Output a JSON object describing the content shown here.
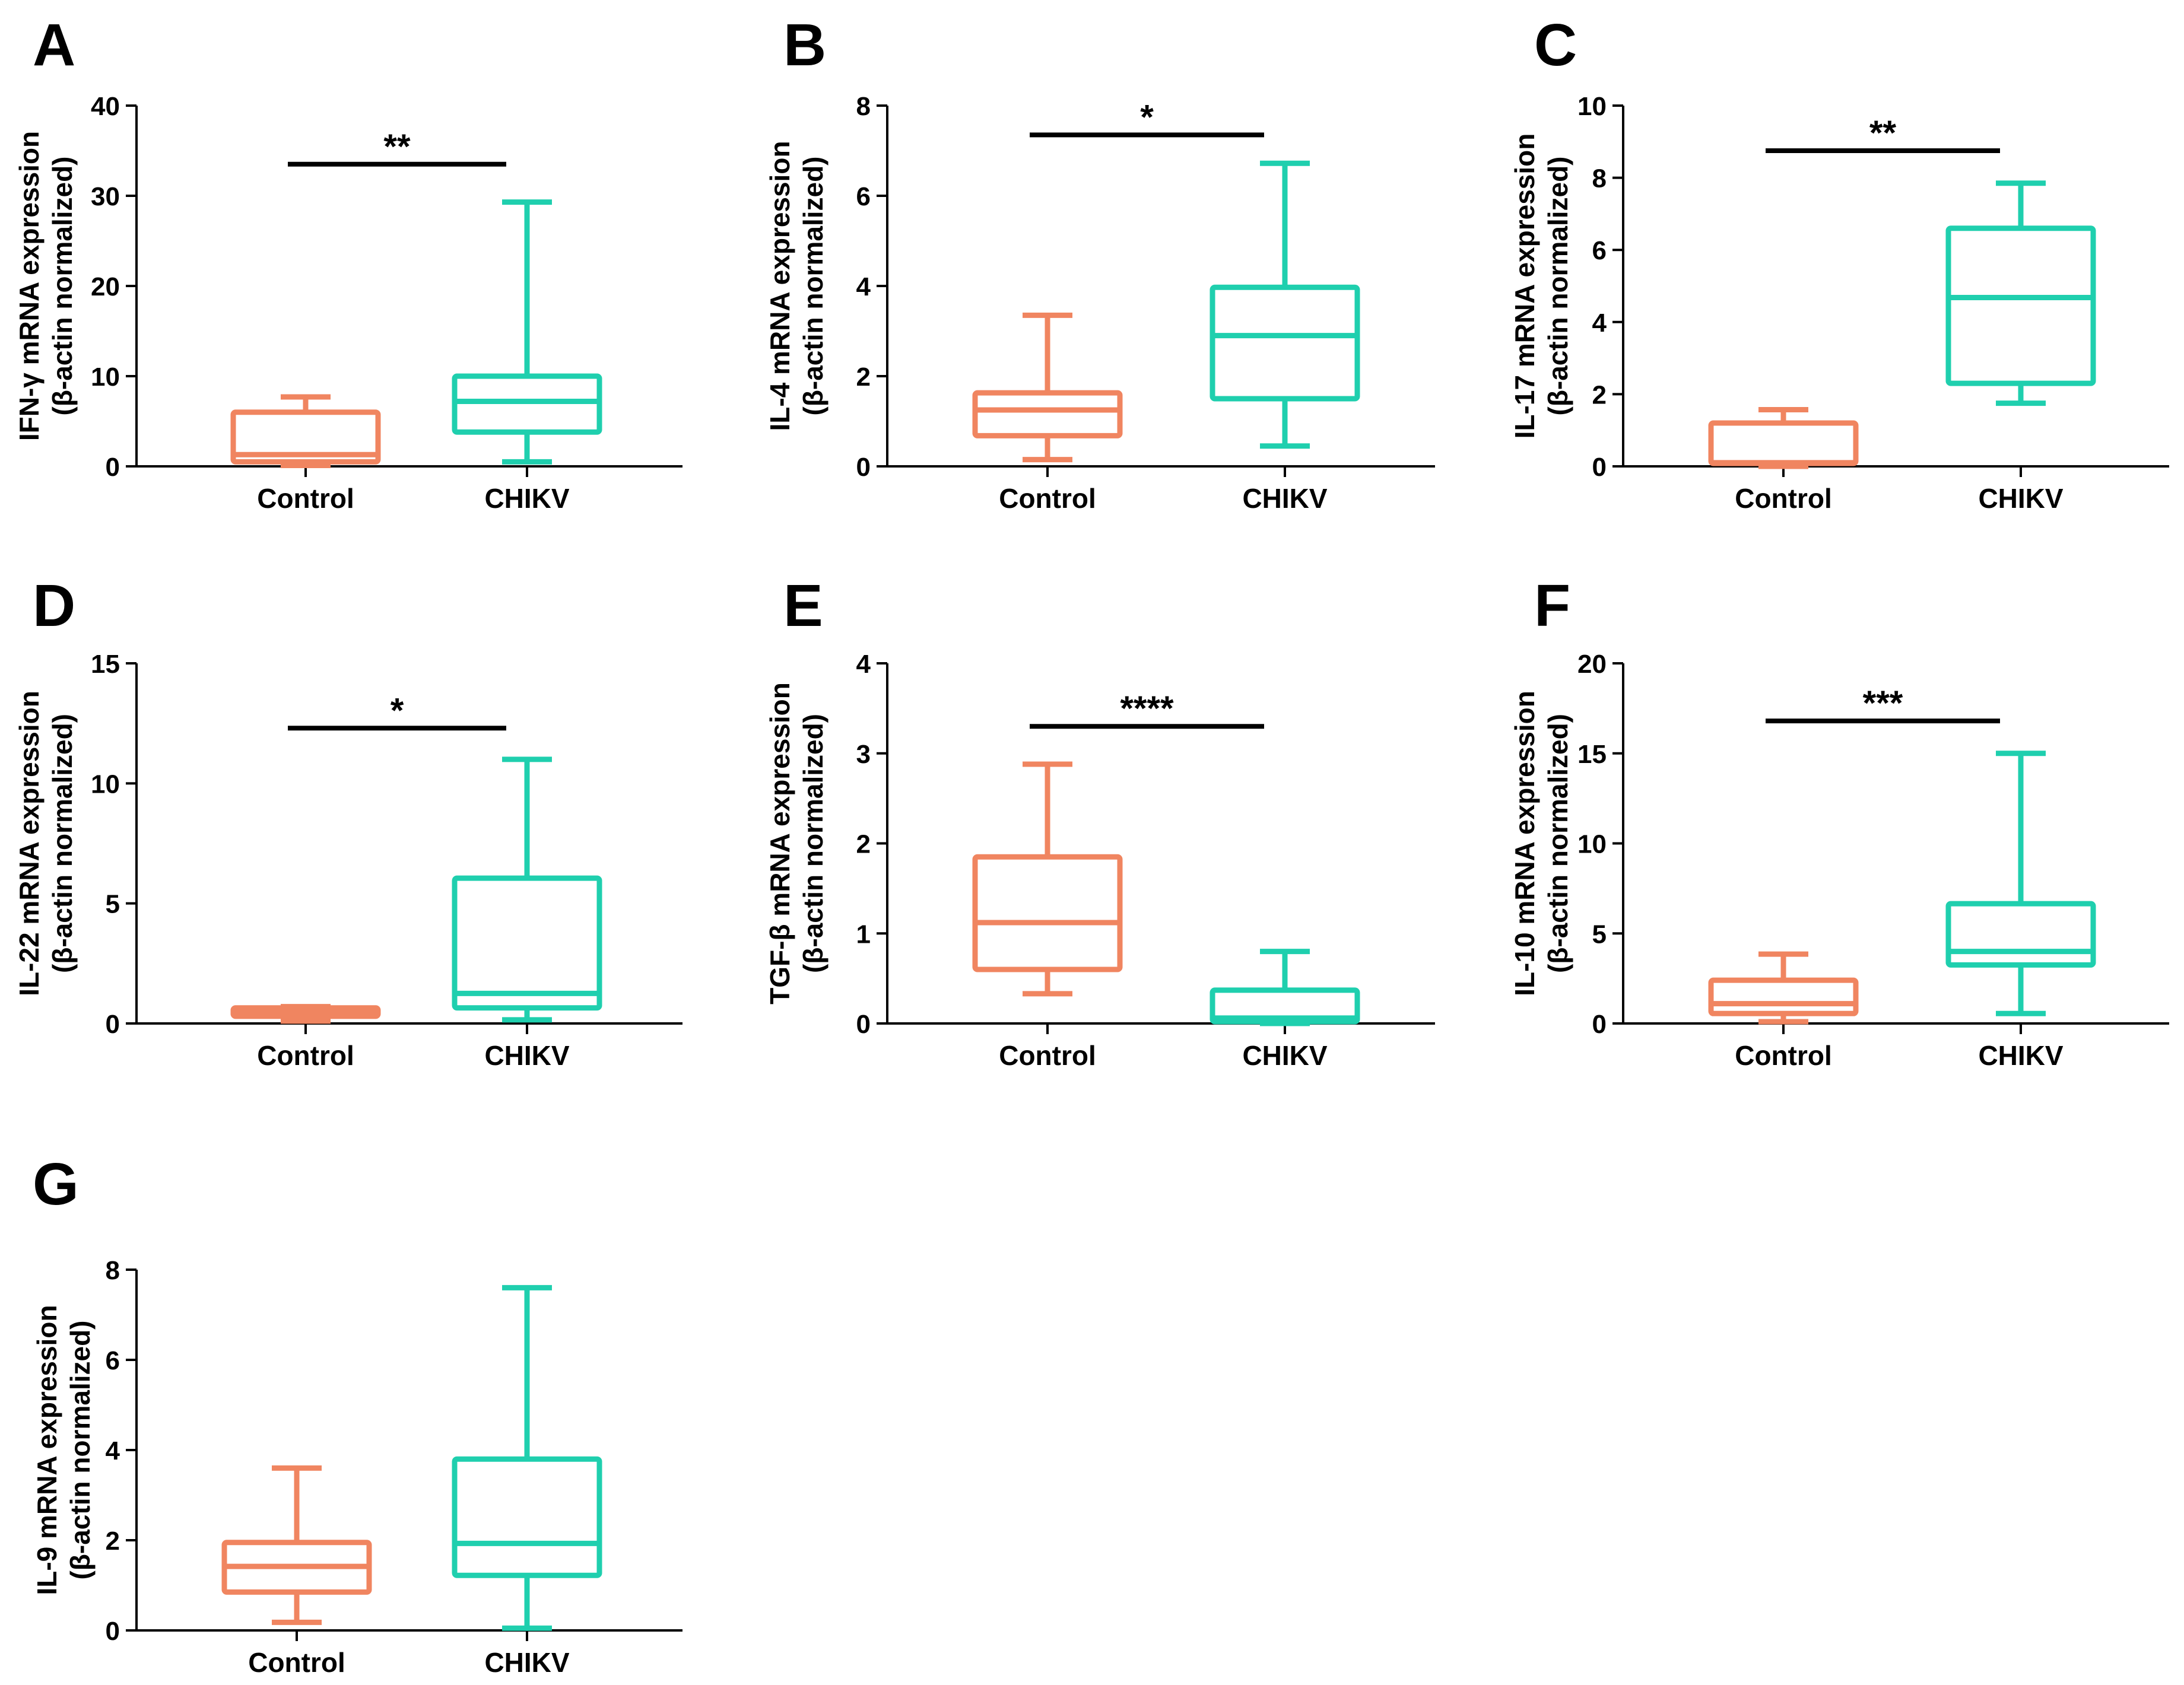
{
  "figure": {
    "colors": {
      "control": "#F08560",
      "chikv": "#1FCFAE",
      "axis": "#000000"
    },
    "categories": [
      "Control",
      "CHIKV"
    ]
  },
  "chart_data": [
    {
      "panel": "A",
      "type": "box",
      "ylabel_line1": "IFN-γ mRNA expression",
      "ylabel_line2": "(β-actin normalized)",
      "ylim": [
        0,
        40
      ],
      "yticks": [
        0,
        10,
        20,
        30,
        40
      ],
      "categories": [
        "Control",
        "CHIKV"
      ],
      "boxes": [
        {
          "name": "Control",
          "min": 0.1,
          "q1": 0.5,
          "median": 1.3,
          "q3": 6.0,
          "max": 7.7
        },
        {
          "name": "CHIKV",
          "min": 0.5,
          "q1": 3.8,
          "median": 7.2,
          "q3": 10.0,
          "max": 29.3
        }
      ],
      "significance": {
        "label": "**",
        "y": 33.5
      }
    },
    {
      "panel": "B",
      "type": "box",
      "ylabel_line1": "IL-4 mRNA expression",
      "ylabel_line2": "(β-actin normalized)",
      "ylim": [
        0,
        8
      ],
      "yticks": [
        0,
        2,
        4,
        6,
        8
      ],
      "categories": [
        "Control",
        "CHIKV"
      ],
      "boxes": [
        {
          "name": "Control",
          "min": 0.15,
          "q1": 0.68,
          "median": 1.25,
          "q3": 1.63,
          "max": 3.35
        },
        {
          "name": "CHIKV",
          "min": 0.45,
          "q1": 1.5,
          "median": 2.9,
          "q3": 3.97,
          "max": 6.72
        }
      ],
      "significance": {
        "label": "*",
        "y": 7.35
      }
    },
    {
      "panel": "C",
      "type": "box",
      "ylabel_line1": "IL-17 mRNA expression",
      "ylabel_line2": "(β-actin normalized)",
      "ylim": [
        0,
        10
      ],
      "yticks": [
        0,
        2,
        4,
        6,
        8,
        10
      ],
      "categories": [
        "Control",
        "CHIKV"
      ],
      "boxes": [
        {
          "name": "Control",
          "min": 0.0,
          "q1": 0.08,
          "median": 0.1,
          "q3": 1.2,
          "max": 1.57
        },
        {
          "name": "CHIKV",
          "min": 1.75,
          "q1": 2.3,
          "median": 4.68,
          "q3": 6.6,
          "max": 7.85
        }
      ],
      "significance": {
        "label": "**",
        "y": 8.75
      }
    },
    {
      "panel": "D",
      "type": "box",
      "ylabel_line1": "IL-22 mRNA expression",
      "ylabel_line2": "(β-actin normalized)",
      "ylim": [
        0,
        15
      ],
      "yticks": [
        0,
        5,
        10,
        15
      ],
      "categories": [
        "Control",
        "CHIKV"
      ],
      "boxes": [
        {
          "name": "Control",
          "min": 0.1,
          "q1": 0.3,
          "median": 0.45,
          "q3": 0.65,
          "max": 0.7
        },
        {
          "name": "CHIKV",
          "min": 0.15,
          "q1": 0.65,
          "median": 1.25,
          "q3": 6.05,
          "max": 11.0
        }
      ],
      "significance": {
        "label": "*",
        "y": 12.3
      }
    },
    {
      "panel": "E",
      "type": "box",
      "ylabel_line1": "TGF-β mRNA expression",
      "ylabel_line2": "(β-actin normalized)",
      "ylim": [
        0,
        4
      ],
      "yticks": [
        0,
        1,
        2,
        3,
        4
      ],
      "categories": [
        "Control",
        "CHIKV"
      ],
      "boxes": [
        {
          "name": "Control",
          "min": 0.33,
          "q1": 0.6,
          "median": 1.12,
          "q3": 1.85,
          "max": 2.88
        },
        {
          "name": "CHIKV",
          "min": 0.0,
          "q1": 0.02,
          "median": 0.06,
          "q3": 0.37,
          "max": 0.8
        }
      ],
      "significance": {
        "label": "****",
        "y": 3.3
      }
    },
    {
      "panel": "F",
      "type": "box",
      "ylabel_line1": "IL-10 mRNA expression",
      "ylabel_line2": "(β-actin normalized)",
      "ylim": [
        0,
        20
      ],
      "yticks": [
        0,
        5,
        10,
        15,
        20
      ],
      "categories": [
        "Control",
        "CHIKV"
      ],
      "boxes": [
        {
          "name": "Control",
          "min": 0.1,
          "q1": 0.55,
          "median": 1.1,
          "q3": 2.4,
          "max": 3.85
        },
        {
          "name": "CHIKV",
          "min": 0.55,
          "q1": 3.25,
          "median": 4.0,
          "q3": 6.65,
          "max": 15.0
        }
      ],
      "significance": {
        "label": "***",
        "y": 16.8
      }
    },
    {
      "panel": "G",
      "type": "box",
      "ylabel_line1": "IL-9 mRNA expression",
      "ylabel_line2": "(β-actin normalized)",
      "ylim": [
        0,
        8
      ],
      "yticks": [
        0,
        2,
        4,
        6,
        8
      ],
      "categories": [
        "Control",
        "CHIKV"
      ],
      "boxes": [
        {
          "name": "Control",
          "min": 0.18,
          "q1": 0.85,
          "median": 1.42,
          "q3": 1.95,
          "max": 3.6
        },
        {
          "name": "CHIKV",
          "min": 0.05,
          "q1": 1.22,
          "median": 1.93,
          "q3": 3.8,
          "max": 7.6
        }
      ],
      "significance": null
    }
  ]
}
